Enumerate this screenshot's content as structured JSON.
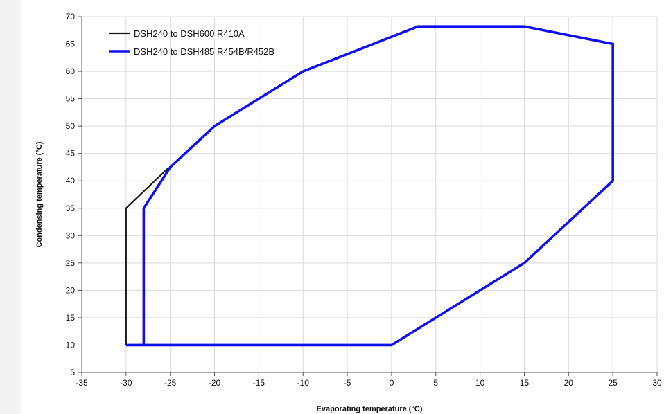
{
  "chart_data": {
    "type": "line",
    "xlabel": "Evaporating temperature (°C)",
    "ylabel": "Condensing temperature (°C)",
    "xlim": [
      -35,
      30
    ],
    "ylim": [
      5,
      70
    ],
    "xticks": [
      -35,
      -30,
      -25,
      -20,
      -15,
      -10,
      -5,
      0,
      5,
      10,
      15,
      20,
      25,
      30
    ],
    "yticks": [
      5,
      10,
      15,
      20,
      25,
      30,
      35,
      40,
      45,
      50,
      55,
      60,
      65,
      70
    ],
    "grid": true,
    "legend_position": "top-left",
    "series": [
      {
        "name": "DSH240 to DSH600 R410A",
        "color": "#1a1a1a",
        "x": [
          -30,
          -30,
          -25.2
        ],
        "y": [
          10,
          35,
          42.4
        ]
      },
      {
        "name": "DSH240 to DSH485 R454B/R452B",
        "color": "#1010ee",
        "x": [
          -28,
          -28,
          -25,
          -20,
          -10,
          3,
          15,
          25,
          25,
          15,
          0,
          -28,
          -30
        ],
        "y": [
          10,
          35,
          42.5,
          50,
          60,
          68.2,
          68.2,
          65,
          40,
          25,
          10,
          10,
          10
        ]
      }
    ]
  }
}
